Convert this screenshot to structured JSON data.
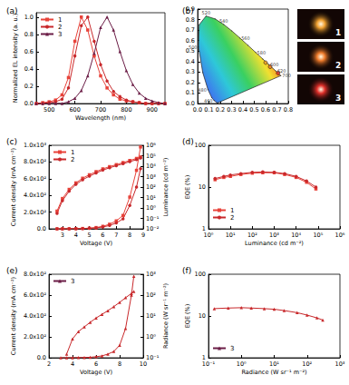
{
  "chart_data": [
    {
      "type": "line",
      "title": "(a)",
      "x_label": "Wavelength (nm)",
      "y_label": "Normalized EL intensity (a. u.)",
      "xlim": [
        450,
        950
      ],
      "xticks": [
        500,
        600,
        700,
        800,
        900
      ],
      "ylim": [
        0,
        1.05
      ],
      "yticks": [
        {
          "value": 0,
          "label": "0.0"
        },
        {
          "value": 0.2,
          "label": "0.2"
        },
        {
          "value": 0.4,
          "label": "0.4"
        },
        {
          "value": 0.6,
          "label": "0.6"
        },
        {
          "value": 0.8,
          "label": "0.8"
        },
        {
          "value": 1,
          "label": "1.0"
        }
      ],
      "grid": false,
      "legend": "upper left",
      "x": [
        450,
        475,
        500,
        525,
        550,
        575,
        600,
        625,
        650,
        675,
        700,
        725,
        750,
        775,
        800,
        825,
        850,
        875,
        900,
        925,
        950
      ],
      "series": [
        {
          "name": "1",
          "color": "#e8433a",
          "marker": "square",
          "values": [
            0,
            0.01,
            0.02,
            0.04,
            0.1,
            0.3,
            0.72,
            1.0,
            0.85,
            0.55,
            0.32,
            0.18,
            0.1,
            0.05,
            0.03,
            0.02,
            0.01,
            0,
            0,
            0,
            0
          ]
        },
        {
          "name": "2",
          "color": "#c8282b",
          "marker": "circle",
          "values": [
            0,
            0,
            0.01,
            0.02,
            0.05,
            0.18,
            0.55,
            0.9,
            1.0,
            0.72,
            0.45,
            0.26,
            0.14,
            0.08,
            0.04,
            0.02,
            0.01,
            0,
            0,
            0,
            0
          ]
        },
        {
          "name": "3",
          "color": "#6b1d46",
          "marker": "triangle",
          "values": [
            0,
            0,
            0,
            0,
            0,
            0.02,
            0.06,
            0.15,
            0.32,
            0.58,
            0.88,
            1.0,
            0.85,
            0.6,
            0.38,
            0.22,
            0.12,
            0.06,
            0.03,
            0.01,
            0
          ]
        }
      ]
    },
    {
      "type": "scatter",
      "title": "(b)",
      "xlim": [
        0,
        0.8
      ],
      "xticks": [
        {
          "value": 0,
          "label": "0.0"
        },
        {
          "value": 0.1,
          "label": "0.1"
        },
        {
          "value": 0.2,
          "label": "0.2"
        },
        {
          "value": 0.3,
          "label": "0.3"
        },
        {
          "value": 0.4,
          "label": "0.4"
        },
        {
          "value": 0.5,
          "label": "0.5"
        },
        {
          "value": 0.6,
          "label": "0.6"
        },
        {
          "value": 0.7,
          "label": "0.7"
        },
        {
          "value": 0.8,
          "label": "0.8"
        }
      ],
      "ylim": [
        0,
        0.9
      ],
      "yticks": [
        {
          "value": 0,
          "label": "0.0"
        },
        {
          "value": 0.1,
          "label": "0.1"
        },
        {
          "value": 0.2,
          "label": "0.2"
        },
        {
          "value": 0.3,
          "label": "0.3"
        },
        {
          "value": 0.4,
          "label": "0.4"
        },
        {
          "value": 0.5,
          "label": "0.5"
        },
        {
          "value": 0.6,
          "label": "0.6"
        },
        {
          "value": 0.7,
          "label": "0.7"
        },
        {
          "value": 0.8,
          "label": "0.8"
        },
        {
          "value": 0.9,
          "label": "0.9"
        }
      ],
      "grid": false,
      "locus": {
        "values": [
          [
            0.1741,
            0.005
          ],
          [
            0.144,
            0.0297
          ],
          [
            0.1241,
            0.0578
          ],
          [
            0.0913,
            0.1327
          ],
          [
            0.0454,
            0.295
          ],
          [
            0.0082,
            0.5384
          ],
          [
            0.0139,
            0.7502
          ],
          [
            0.0743,
            0.8338
          ],
          [
            0.1547,
            0.8059
          ],
          [
            0.2296,
            0.7543
          ],
          [
            0.3016,
            0.6923
          ],
          [
            0.3731,
            0.6245
          ],
          [
            0.4441,
            0.5547
          ],
          [
            0.5125,
            0.4866
          ],
          [
            0.5752,
            0.4242
          ],
          [
            0.627,
            0.3725
          ],
          [
            0.6915,
            0.3083
          ],
          [
            0.7347,
            0.2653
          ],
          [
            0.1741,
            0.005
          ]
        ],
        "value_labels": [
          null,
          "460",
          null,
          "480",
          null,
          "500",
          null,
          "520",
          null,
          "540",
          null,
          "560",
          null,
          "580",
          null,
          "600",
          "620",
          "700",
          null
        ]
      },
      "series": [
        {
          "name": "1",
          "color": "#f0a030",
          "marker": "circle",
          "values": [
            [
              0.6,
              0.39
            ]
          ]
        },
        {
          "name": "2",
          "color": "#ee7a2a",
          "marker": "circle",
          "values": [
            [
              0.64,
              0.35
            ]
          ]
        },
        {
          "name": "3",
          "color": "#e0302a",
          "marker": "circle",
          "values": [
            [
              0.71,
              0.29
            ]
          ]
        }
      ]
    },
    {
      "type": "line",
      "title": "(c)",
      "x_label": "Voltage (V)",
      "y_label": "Current density (mA cm⁻²)",
      "y2_label": "Luminance (cd m⁻²)",
      "log": "y2",
      "xlim": [
        2,
        9
      ],
      "xticks": [
        3,
        4,
        5,
        6,
        7,
        8,
        9
      ],
      "ylim": [
        0,
        1000
      ],
      "yticks": [
        {
          "value": 0,
          "label": "0.0"
        },
        {
          "value": 200,
          "label": "2.0x10²"
        },
        {
          "value": 400,
          "label": "4.0x10²"
        },
        {
          "value": 600,
          "label": "6.0x10²"
        },
        {
          "value": 800,
          "label": "8.0x10²"
        },
        {
          "value": 1000,
          "label": "1.0x10³"
        }
      ],
      "y2lim": [
        0.01,
        1000000
      ],
      "y2ticks": [
        {
          "value": 0.01,
          "label": "10⁻²"
        },
        {
          "value": 0.1,
          "label": "10⁻¹"
        },
        {
          "value": 1,
          "label": "10⁰"
        },
        {
          "value": 10,
          "label": "10¹"
        },
        {
          "value": 100,
          "label": "10²"
        },
        {
          "value": 1000,
          "label": "10³"
        },
        {
          "value": 10000,
          "label": "10⁴"
        },
        {
          "value": 100000,
          "label": "10⁵"
        },
        {
          "value": 1000000,
          "label": "10⁶"
        }
      ],
      "grid": false,
      "legend": "upper left",
      "x": [
        2.6,
        3,
        3.5,
        4,
        4.5,
        5,
        5.5,
        6,
        6.5,
        7,
        7.5,
        8,
        8.5,
        8.8
      ],
      "series": [
        {
          "name": "1",
          "color": "#e8433a",
          "marker": "square",
          "values": [
            0,
            0.5,
            1,
            2,
            4,
            8,
            15,
            30,
            55,
            95,
            160,
            380,
            700,
            980
          ]
        },
        {
          "name": "2",
          "color": "#c8282b",
          "marker": "circle",
          "values": [
            0,
            0.3,
            0.8,
            1.5,
            3,
            6,
            12,
            22,
            40,
            70,
            120,
            280,
            500,
            720
          ]
        },
        {
          "name": "1",
          "color": "#e8433a",
          "marker": "square",
          "axis": "y2",
          "values": [
            0.5,
            8,
            60,
            250,
            700,
            1500,
            3000,
            5500,
            9000,
            14000,
            22000,
            35000,
            55000,
            75000
          ]
        },
        {
          "name": "2",
          "color": "#c8282b",
          "marker": "circle",
          "axis": "y2",
          "values": [
            0.3,
            5,
            40,
            180,
            500,
            1100,
            2200,
            4200,
            7000,
            11000,
            17000,
            27000,
            42000,
            60000
          ]
        }
      ]
    },
    {
      "type": "line",
      "title": "(d)",
      "x_label": "Luminance (cd m⁻²)",
      "y_label": "EQE (%)",
      "log": true,
      "xlim": [
        1,
        1000000
      ],
      "xticks": [
        {
          "value": 1,
          "label": "10⁰"
        },
        {
          "value": 10,
          "label": "10¹"
        },
        {
          "value": 100,
          "label": "10²"
        },
        {
          "value": 1000,
          "label": "10³"
        },
        {
          "value": 10000,
          "label": "10⁴"
        },
        {
          "value": 100000,
          "label": "10⁵"
        },
        {
          "value": 1000000,
          "label": "10⁶"
        }
      ],
      "ylim": [
        1,
        100
      ],
      "yticks": [
        1,
        10,
        100
      ],
      "grid": false,
      "legend": "lower left",
      "x": [
        2,
        5,
        10,
        30,
        100,
        300,
        1000,
        3000,
        10000,
        30000,
        80000
      ],
      "series": [
        {
          "name": "1",
          "color": "#e8433a",
          "marker": "square",
          "values": [
            15,
            17,
            18,
            20,
            21.5,
            22,
            22,
            20,
            17,
            13,
            9
          ]
        },
        {
          "name": "2",
          "color": "#c8282b",
          "marker": "circle",
          "values": [
            16,
            18,
            19.5,
            21,
            22.5,
            23,
            22.5,
            21,
            18,
            14,
            10
          ]
        }
      ]
    },
    {
      "type": "line",
      "title": "(e)",
      "x_label": "Voltage (V)",
      "y_label": "Current density (mA cm⁻²)",
      "y2_label": "Radiance (W sr⁻¹ m⁻²)",
      "log": "y2",
      "xlim": [
        2,
        10
      ],
      "xticks": [
        2,
        4,
        6,
        8,
        10
      ],
      "ylim": [
        0,
        800
      ],
      "yticks": [
        {
          "value": 0,
          "label": "0.0"
        },
        {
          "value": 200,
          "label": "2.0x10²"
        },
        {
          "value": 400,
          "label": "4.0x10²"
        },
        {
          "value": 600,
          "label": "6.0x10²"
        },
        {
          "value": 800,
          "label": "8.0x10²"
        }
      ],
      "y2lim": [
        0.1,
        1000
      ],
      "y2ticks": [
        {
          "value": 0.1,
          "label": "10⁻¹"
        },
        {
          "value": 1,
          "label": "10⁰"
        },
        {
          "value": 10,
          "label": "10¹"
        },
        {
          "value": 100,
          "label": "10²"
        },
        {
          "value": 1000,
          "label": "10³"
        }
      ],
      "grid": false,
      "legend": "upper left",
      "x": [
        3,
        3.5,
        4,
        4.5,
        5,
        5.5,
        6,
        6.5,
        7,
        7.5,
        8,
        8.5,
        9,
        9.2
      ],
      "series": [
        {
          "name": "3",
          "color": "#c8282b",
          "marker": "triangle",
          "values": [
            0,
            0.5,
            1,
            2,
            3,
            5,
            10,
            18,
            35,
            60,
            120,
            280,
            600,
            780
          ]
        },
        {
          "name": "3",
          "color": "#c8282b",
          "marker": "triangle",
          "axis": "y2",
          "values": [
            null,
            0.15,
            0.8,
            1.8,
            3,
            5,
            8,
            12,
            18,
            28,
            45,
            75,
            120,
            150
          ]
        }
      ]
    },
    {
      "type": "line",
      "title": "(f)",
      "x_label": "Radiance (W sr⁻¹ m⁻²)",
      "y_label": "EQE (%)",
      "log": true,
      "xlim": [
        0.1,
        1000
      ],
      "xticks": [
        {
          "value": 0.1,
          "label": "10⁻¹"
        },
        {
          "value": 1,
          "label": "10⁰"
        },
        {
          "value": 10,
          "label": "10¹"
        },
        {
          "value": 100,
          "label": "10²"
        },
        {
          "value": 1000,
          "label": "10³"
        }
      ],
      "ylim": [
        1,
        100
      ],
      "yticks": [
        1,
        10,
        100
      ],
      "grid": false,
      "legend": "lower left",
      "x": [
        0.15,
        0.4,
        1,
        2,
        5,
        10,
        20,
        50,
        100,
        200,
        300
      ],
      "series": [
        {
          "name": "3",
          "color": "#c8282b",
          "marker": "triangle",
          "values": [
            15,
            15.5,
            15.8,
            15.5,
            15,
            14.5,
            13.5,
            12,
            10.5,
            9,
            8
          ]
        }
      ]
    }
  ]
}
